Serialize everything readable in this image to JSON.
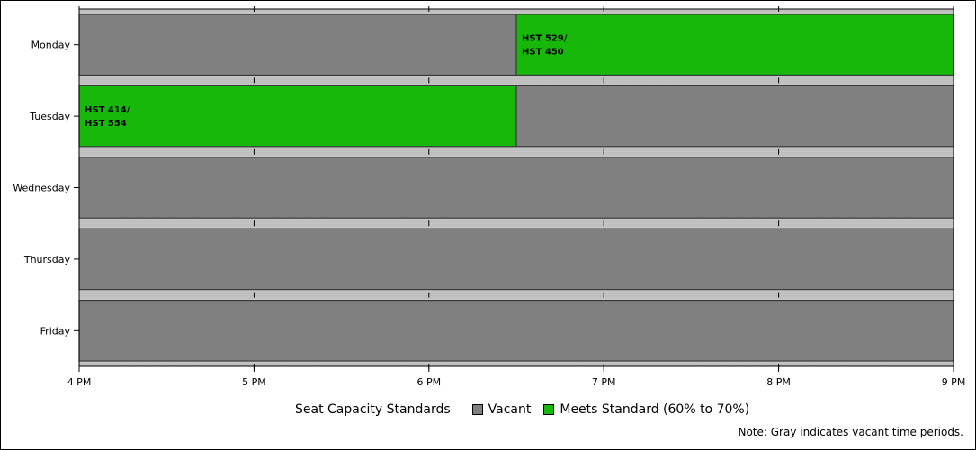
{
  "chart_data": {
    "type": "bar",
    "orientation": "horizontal-timeline",
    "categories": [
      "Monday",
      "Tuesday",
      "Wednesday",
      "Thursday",
      "Friday"
    ],
    "x_ticks": [
      "4 PM",
      "5 PM",
      "6 PM",
      "7 PM",
      "8 PM",
      "9 PM"
    ],
    "xlim": [
      16,
      21
    ],
    "series": [
      {
        "name": "Vacant",
        "color": "#808080",
        "segments": [
          {
            "day": "Monday",
            "start": 16,
            "end": 18.5,
            "label": ""
          },
          {
            "day": "Tuesday",
            "start": 18.5,
            "end": 21,
            "label": ""
          },
          {
            "day": "Wednesday",
            "start": 16,
            "end": 21,
            "label": ""
          },
          {
            "day": "Thursday",
            "start": 16,
            "end": 21,
            "label": ""
          },
          {
            "day": "Friday",
            "start": 16,
            "end": 21,
            "label": ""
          }
        ]
      },
      {
        "name": "Meets Standard (60% to 70%)",
        "color": "#17b80a",
        "segments": [
          {
            "day": "Monday",
            "start": 18.5,
            "end": 21,
            "label": [
              "HST 529/",
              "HST 450"
            ]
          },
          {
            "day": "Tuesday",
            "start": 16,
            "end": 18.5,
            "label": [
              "HST 414/",
              "HST 554"
            ]
          }
        ]
      }
    ],
    "legend_title": "Seat Capacity Standards",
    "legend_position": "bottom-center",
    "footnote": "Note: Gray indicates vacant time periods.",
    "title": "",
    "xlabel": "",
    "ylabel": ""
  },
  "legend": {
    "title": "Seat Capacity Standards",
    "items": [
      {
        "label": "Vacant",
        "color": "#808080"
      },
      {
        "label": "Meets Standard (60% to 70%)",
        "color": "#17b80a"
      }
    ]
  },
  "footnote": "Note: Gray indicates vacant time periods."
}
